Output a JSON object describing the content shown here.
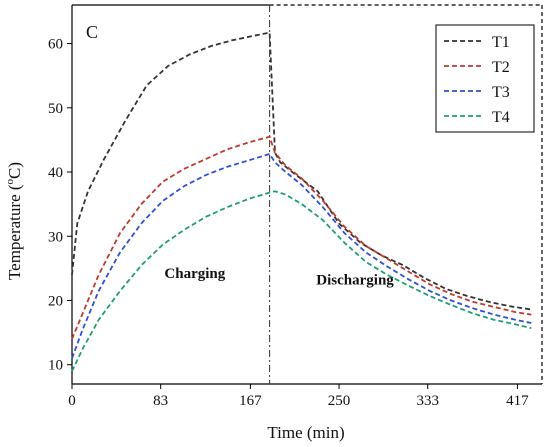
{
  "chart_data": {
    "type": "line",
    "panel_label": "C",
    "xlabel": "Time (min)",
    "ylabel_main": "Temperature (",
    "ylabel_sup": "o",
    "ylabel_tail": "C)",
    "xlim": [
      0,
      440
    ],
    "ylim": [
      7,
      66
    ],
    "x_ticks": [
      0,
      83,
      167,
      250,
      333,
      417
    ],
    "y_ticks": [
      10,
      20,
      30,
      40,
      50,
      60
    ],
    "grid": false,
    "legend_position": "top-right",
    "divider_x": 185,
    "annotations": [
      {
        "text": "Charging",
        "x": 115,
        "y": 23.5
      },
      {
        "text": "Discharging",
        "x": 265,
        "y": 22.5
      }
    ],
    "series": [
      {
        "name": "T1",
        "color": "#333333",
        "x": [
          0,
          5,
          15,
          30,
          50,
          70,
          90,
          110,
          130,
          150,
          170,
          185,
          190,
          195,
          210,
          230,
          250,
          270,
          290,
          310,
          330,
          350,
          370,
          390,
          410,
          430
        ],
        "y": [
          24,
          32,
          37,
          42,
          48,
          53.5,
          56.5,
          58.3,
          59.6,
          60.5,
          61.2,
          61.7,
          43,
          41.5,
          39.5,
          37,
          32,
          29,
          27,
          25.5,
          23.5,
          21.8,
          20.7,
          19.8,
          19.1,
          18.6
        ]
      },
      {
        "name": "T2",
        "color": "#c0392b",
        "x": [
          0,
          10,
          25,
          45,
          65,
          85,
          105,
          125,
          145,
          165,
          185,
          190,
          200,
          215,
          235,
          255,
          275,
          295,
          315,
          335,
          355,
          375,
          395,
          415,
          430
        ],
        "y": [
          14,
          18,
          24,
          30.5,
          35,
          38.5,
          40.5,
          42,
          43.5,
          44.6,
          45.5,
          43,
          41,
          39,
          35.5,
          31.5,
          28.5,
          26.5,
          24.5,
          22.5,
          21,
          19.8,
          19,
          18.2,
          17.8
        ]
      },
      {
        "name": "T3",
        "color": "#2f4fd6",
        "x": [
          0,
          10,
          25,
          45,
          65,
          85,
          105,
          125,
          145,
          165,
          185,
          190,
          200,
          215,
          235,
          255,
          275,
          295,
          315,
          335,
          355,
          375,
          395,
          415,
          430
        ],
        "y": [
          11,
          15.5,
          21.5,
          27.5,
          32,
          35.5,
          37.8,
          39.5,
          40.8,
          41.8,
          42.8,
          41.5,
          40,
          38,
          34.5,
          30.5,
          27.5,
          25.3,
          23.3,
          21.5,
          20,
          18.8,
          17.8,
          17,
          16.5
        ]
      },
      {
        "name": "T4",
        "color": "#1e9e73",
        "x": [
          0,
          10,
          25,
          45,
          65,
          85,
          105,
          125,
          145,
          165,
          185,
          190,
          200,
          215,
          235,
          255,
          275,
          295,
          315,
          335,
          355,
          375,
          395,
          415,
          430
        ],
        "y": [
          9,
          12.5,
          17,
          21.5,
          25.5,
          28.7,
          31,
          33,
          34.5,
          35.8,
          36.8,
          37,
          36.5,
          35,
          32.5,
          29,
          26,
          24,
          22.3,
          20.7,
          19.3,
          18,
          17,
          16.3,
          15.7
        ]
      }
    ]
  }
}
